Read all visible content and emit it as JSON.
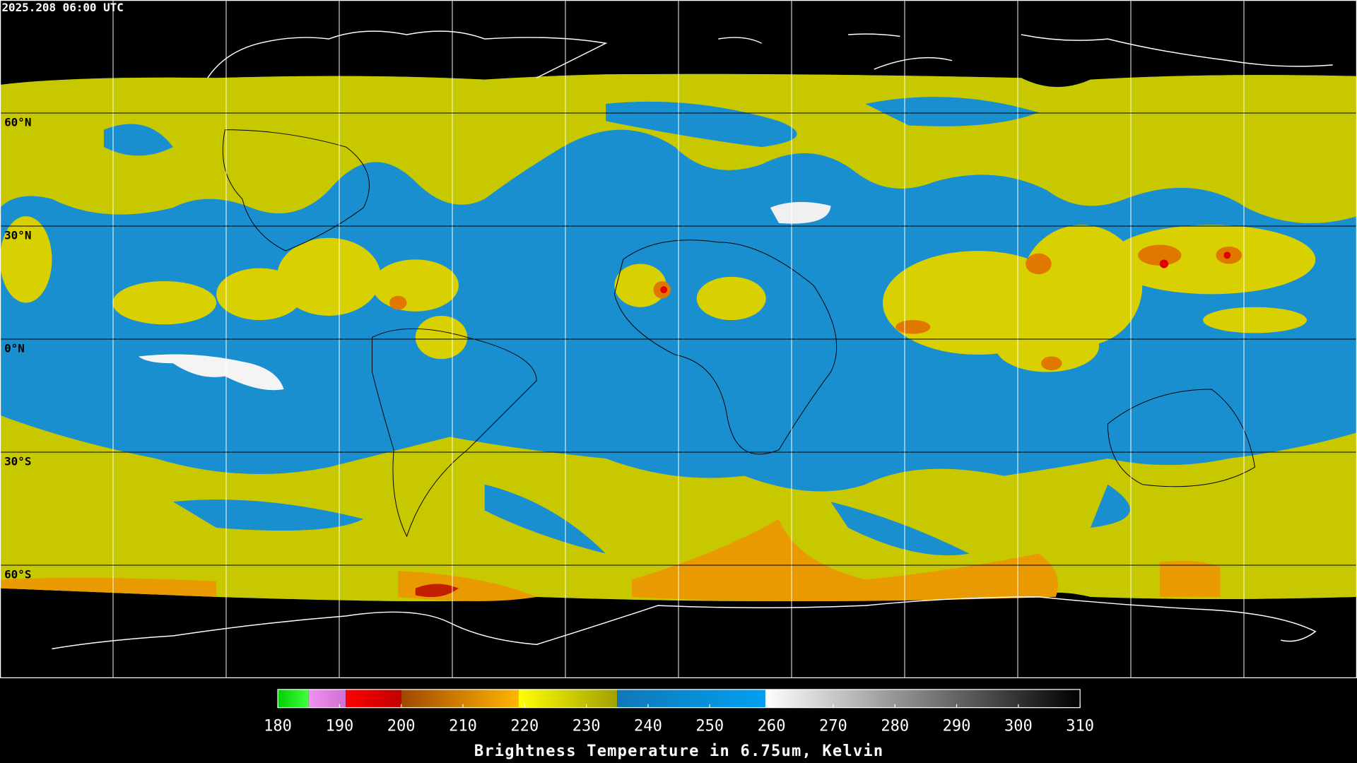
{
  "header": {
    "timestamp": "2025.208 06:00 UTC"
  },
  "map": {
    "lat_lines": [
      {
        "value": 60,
        "label": "60°N"
      },
      {
        "value": 30,
        "label": "30°N"
      },
      {
        "value": 0,
        "label": "0°N"
      },
      {
        "value": -30,
        "label": "30°S"
      },
      {
        "value": -60,
        "label": "60°S"
      }
    ]
  },
  "colorbar": {
    "title": "Brightness Temperature in 6.75um, Kelvin",
    "range": [
      180,
      310
    ],
    "ticks": [
      180,
      190,
      200,
      210,
      220,
      230,
      240,
      250,
      260,
      270,
      280,
      290,
      300,
      310
    ],
    "segments": [
      {
        "from": 180,
        "to": 185,
        "colors": [
          "#00d000",
          "#40ff40"
        ]
      },
      {
        "from": 185,
        "to": 191,
        "colors": [
          "#f090f0",
          "#d070d0"
        ]
      },
      {
        "from": 191,
        "to": 200,
        "colors": [
          "#ff0000",
          "#c00000"
        ]
      },
      {
        "from": 200,
        "to": 219,
        "colors": [
          "#a04800",
          "#ffb400"
        ]
      },
      {
        "from": 219,
        "to": 235,
        "colors": [
          "#ffff00",
          "#a0a000"
        ]
      },
      {
        "from": 235,
        "to": 259,
        "colors": [
          "#1078b8",
          "#00a0f0"
        ]
      },
      {
        "from": 259,
        "to": 310,
        "colors": [
          "#ffffff",
          "#000000"
        ]
      }
    ]
  }
}
